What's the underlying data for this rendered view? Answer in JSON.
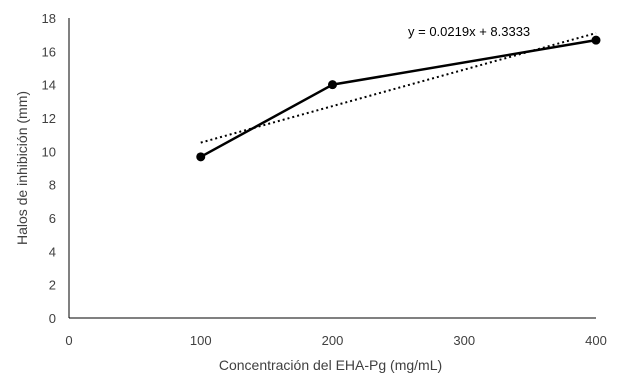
{
  "chart_data": {
    "type": "line",
    "title": "",
    "xlabel": "Concentración del EHA-Pg (mg/mL)",
    "ylabel": "Halos de inhibición (mm)",
    "xlim": [
      0,
      400
    ],
    "ylim": [
      0,
      18
    ],
    "x_ticks": [
      "0",
      "100",
      "200",
      "300",
      "400"
    ],
    "y_ticks": [
      "0",
      "2",
      "4",
      "6",
      "8",
      "10",
      "12",
      "14",
      "16",
      "18"
    ],
    "grid": false,
    "series": [
      {
        "x": [
          100,
          200,
          400
        ],
        "y": [
          9.67,
          14,
          16.67
        ],
        "color": "#000000",
        "style": "solid",
        "markers": true
      }
    ],
    "trendline": {
      "type": "linear",
      "slope": 0.0219,
      "intercept": 8.3333,
      "x_range": [
        100,
        400
      ],
      "color": "#000000",
      "style": "dotted",
      "equation": "y = 0.0219x + 8.3333"
    }
  }
}
